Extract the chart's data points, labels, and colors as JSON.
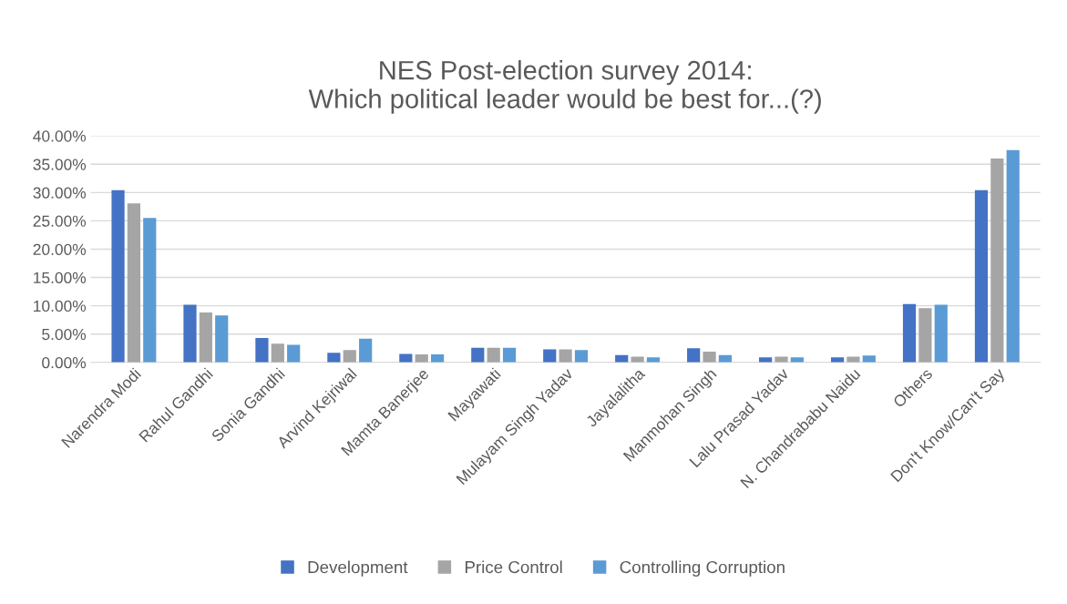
{
  "chart_data": {
    "type": "bar",
    "title": "NES Post-election survey 2014:\nWhich political leader would be best for...(?)",
    "categories": [
      "Narendra Modi",
      "Rahul Gandhi",
      "Sonia Gandhi",
      "Arvind Kejriwal",
      "Mamta Banerjee",
      "Mayawati",
      "Mulayam Singh Yadav",
      "Jayalalitha",
      "Manmohan Singh",
      "Lalu Prasad Yadav",
      "N. Chandrababu Naidu",
      "Others",
      "Don't Know/Can't Say"
    ],
    "series": [
      {
        "name": "Development",
        "color": "#4472c4",
        "values": [
          30.4,
          10.2,
          4.3,
          1.7,
          1.5,
          2.6,
          2.3,
          1.3,
          2.5,
          0.9,
          0.9,
          10.3,
          30.4
        ]
      },
      {
        "name": "Price Control",
        "color": "#a5a5a5",
        "values": [
          28.1,
          8.8,
          3.3,
          2.2,
          1.4,
          2.6,
          2.3,
          1.0,
          1.9,
          1.0,
          1.0,
          9.6,
          36.0
        ]
      },
      {
        "name": "Controlling Corruption",
        "color": "#5b9bd5",
        "values": [
          25.5,
          8.3,
          3.1,
          4.2,
          1.4,
          2.6,
          2.2,
          0.9,
          1.3,
          0.9,
          1.2,
          10.2,
          37.5
        ]
      }
    ],
    "ylim": [
      0,
      40
    ],
    "yticks": [
      {
        "value": 0,
        "label": "0.00%"
      },
      {
        "value": 5,
        "label": "5.00%"
      },
      {
        "value": 10,
        "label": "10.00%"
      },
      {
        "value": 15,
        "label": "15.00%"
      },
      {
        "value": 20,
        "label": "20.00%"
      },
      {
        "value": 25,
        "label": "25.00%"
      },
      {
        "value": 30,
        "label": "30.00%"
      },
      {
        "value": 35,
        "label": "35.00%"
      },
      {
        "value": 40,
        "label": "40.00%"
      }
    ],
    "grid": "y",
    "legend": "bottom"
  }
}
